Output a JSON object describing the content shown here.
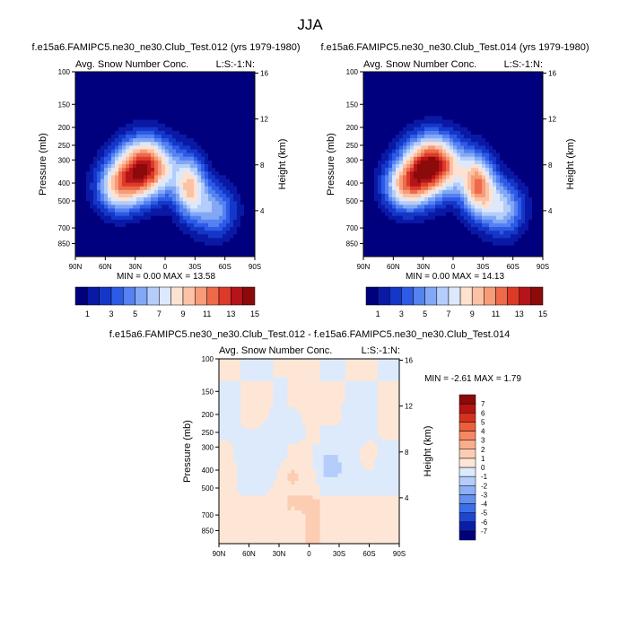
{
  "page_title": "JJA",
  "colors": {
    "pos": [
      "#00007f",
      "#0a19a5",
      "#1437c8",
      "#2d5ae6",
      "#5582f0",
      "#82a8f5",
      "#b4cdfa",
      "#dce9fc",
      "#fde2d2",
      "#fbc2a6",
      "#f79c78",
      "#ee6a4a",
      "#dc3a28",
      "#b4141a",
      "#8c0a0a"
    ],
    "diff": [
      "#00007f",
      "#0a1ea5",
      "#1e46d2",
      "#3c6ee6",
      "#6490f0",
      "#8caff5",
      "#b4cdfa",
      "#dceafc",
      "#fde6d6",
      "#fccdb2",
      "#f9ad8c",
      "#f58864",
      "#ed5f3c",
      "#d5321e",
      "#b41414",
      "#8c0a0a"
    ]
  },
  "chart_data": [
    {
      "id": "left",
      "type": "heatmap",
      "title": "f.e15a6.FAMIPC5.ne30_ne30.Club_Test.012 (yrs 1979-1980)",
      "variable_label": "Avg. Snow Number Conc.",
      "code_label": "L:S:-1:N:",
      "ylabel": "Pressure (mb)",
      "y2label": "Height (km)",
      "xticks": [
        "90N",
        "60N",
        "30N",
        "0",
        "30S",
        "60S",
        "90S"
      ],
      "yticks": [
        "100",
        "150",
        "200",
        "250",
        "300",
        "400",
        "500",
        "700",
        "850"
      ],
      "y2ticks": [
        "16",
        "12",
        "8",
        "4"
      ],
      "min_max": "MIN =  0.00  MAX = 13.58",
      "cb_labels": [
        "1",
        "3",
        "5",
        "7",
        "9",
        "11",
        "13",
        "15"
      ],
      "peak": 13.58,
      "blobs": [
        {
          "lat": 20,
          "p": 330,
          "a": 1.0,
          "sx": 20,
          "sy": 0.26
        },
        {
          "lat": 47,
          "p": 430,
          "a": 0.55,
          "sx": 16,
          "sy": 0.22
        },
        {
          "lat": -25,
          "p": 420,
          "a": 0.62,
          "sx": 11,
          "sy": 0.26
        },
        {
          "lat": -50,
          "p": 560,
          "a": 0.4,
          "sx": 15,
          "sy": 0.24
        }
      ]
    },
    {
      "id": "right",
      "type": "heatmap",
      "title": "f.e15a6.FAMIPC5.ne30_ne30.Club_Test.014 (yrs 1979-1980)",
      "variable_label": "Avg. Snow Number Conc.",
      "code_label": "L:S:-1:N:",
      "ylabel": "Pressure (mb)",
      "y2label": "Height (km)",
      "xticks": [
        "90N",
        "60N",
        "30N",
        "0",
        "30S",
        "60S",
        "90S"
      ],
      "yticks": [
        "100",
        "150",
        "200",
        "250",
        "300",
        "400",
        "500",
        "700",
        "850"
      ],
      "y2ticks": [
        "16",
        "12",
        "8",
        "4"
      ],
      "min_max": "MIN =  0.00  MAX = 14.13",
      "cb_labels": [
        "1",
        "3",
        "5",
        "7",
        "9",
        "11",
        "13",
        "15"
      ],
      "peak": 14.13,
      "blobs": [
        {
          "lat": 20,
          "p": 320,
          "a": 1.0,
          "sx": 20,
          "sy": 0.26
        },
        {
          "lat": 47,
          "p": 420,
          "a": 0.6,
          "sx": 16,
          "sy": 0.22
        },
        {
          "lat": -25,
          "p": 410,
          "a": 0.72,
          "sx": 12,
          "sy": 0.26
        },
        {
          "lat": -50,
          "p": 550,
          "a": 0.45,
          "sx": 15,
          "sy": 0.24
        }
      ]
    },
    {
      "id": "diff",
      "type": "heatmap",
      "title": "f.e15a6.FAMIPC5.ne30_ne30.Club_Test.012 - f.e15a6.FAMIPC5.ne30_ne30.Club_Test.014",
      "variable_label": "Avg. Snow Number Conc.",
      "code_label": "L:S:-1:N:",
      "ylabel": "Pressure (mb)",
      "y2label": "Height (km)",
      "xticks": [
        "90N",
        "60N",
        "30N",
        "0",
        "30S",
        "60S",
        "90S"
      ],
      "yticks": [
        "100",
        "150",
        "200",
        "250",
        "300",
        "400",
        "500",
        "700",
        "850"
      ],
      "y2ticks": [
        "16",
        "12",
        "8",
        "4"
      ],
      "min_max": "MIN = -2.61  MAX =  1.79",
      "cb_labels": [
        "7",
        "6",
        "5",
        "4",
        "3",
        "2",
        "1",
        "0",
        "-1",
        "-2",
        "-3",
        "-4",
        "-5",
        "-6",
        "-7"
      ],
      "min": -2.61,
      "max": 1.79
    }
  ]
}
